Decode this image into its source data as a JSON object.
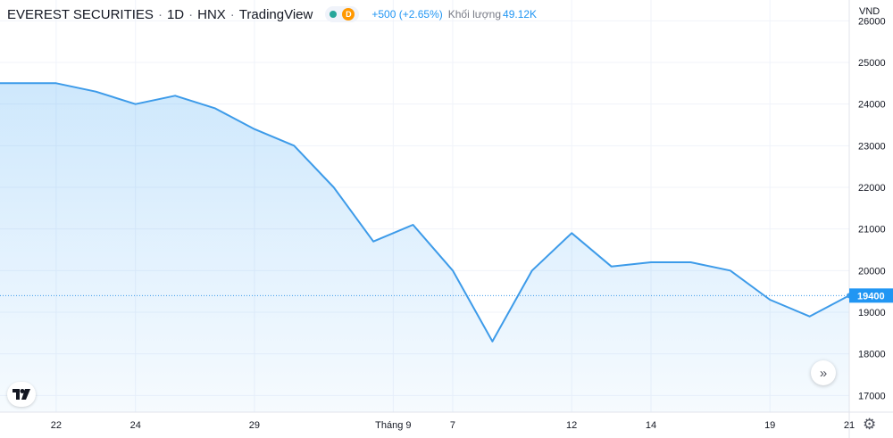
{
  "header": {
    "symbol": "EVEREST SECURITIES",
    "interval": "1D",
    "exchange": "HNX",
    "source": "TradingView",
    "market_status_badge": "D",
    "change": "+500 (+2.65%)",
    "volume_label": "Khối lượng",
    "volume_value": "49.12K"
  },
  "currency": "VND",
  "icons": {
    "logo": "tradingview-logo-icon",
    "scroll": "scroll-to-realtime-icon",
    "settings": "gear-icon"
  },
  "colors": {
    "line": "#3d9be9",
    "area": "#2196f3",
    "grid": "#f0f3fa",
    "price_label_bg": "#2196f3",
    "change": "#2196f3",
    "market_open": "#26a69a",
    "badge": "#ff9800"
  },
  "chart_data": {
    "type": "area",
    "series": [
      {
        "values": [
          24500,
          24500,
          24300,
          24000,
          24200,
          23900,
          23400,
          23000,
          22000,
          20700,
          21100,
          20000,
          18300,
          20000,
          20900,
          20100,
          20200,
          20200,
          20000,
          19300,
          18900,
          19400
        ]
      }
    ],
    "ylim": [
      16600,
      26500
    ],
    "y_ticks": [
      17000,
      18000,
      19000,
      20000,
      21000,
      22000,
      23000,
      24000,
      25000,
      26000
    ],
    "x_ticks": [
      {
        "label": "22",
        "index": 1
      },
      {
        "label": "24",
        "index": 3
      },
      {
        "label": "29",
        "index": 6
      },
      {
        "label": "Tháng 9",
        "index": 9.5
      },
      {
        "label": "7",
        "index": 11
      },
      {
        "label": "12",
        "index": 14
      },
      {
        "label": "14",
        "index": 16
      },
      {
        "label": "19",
        "index": 19
      },
      {
        "label": "21",
        "index": 21
      }
    ],
    "last_price": 19400,
    "last_price_label": "19400",
    "grid": true
  }
}
